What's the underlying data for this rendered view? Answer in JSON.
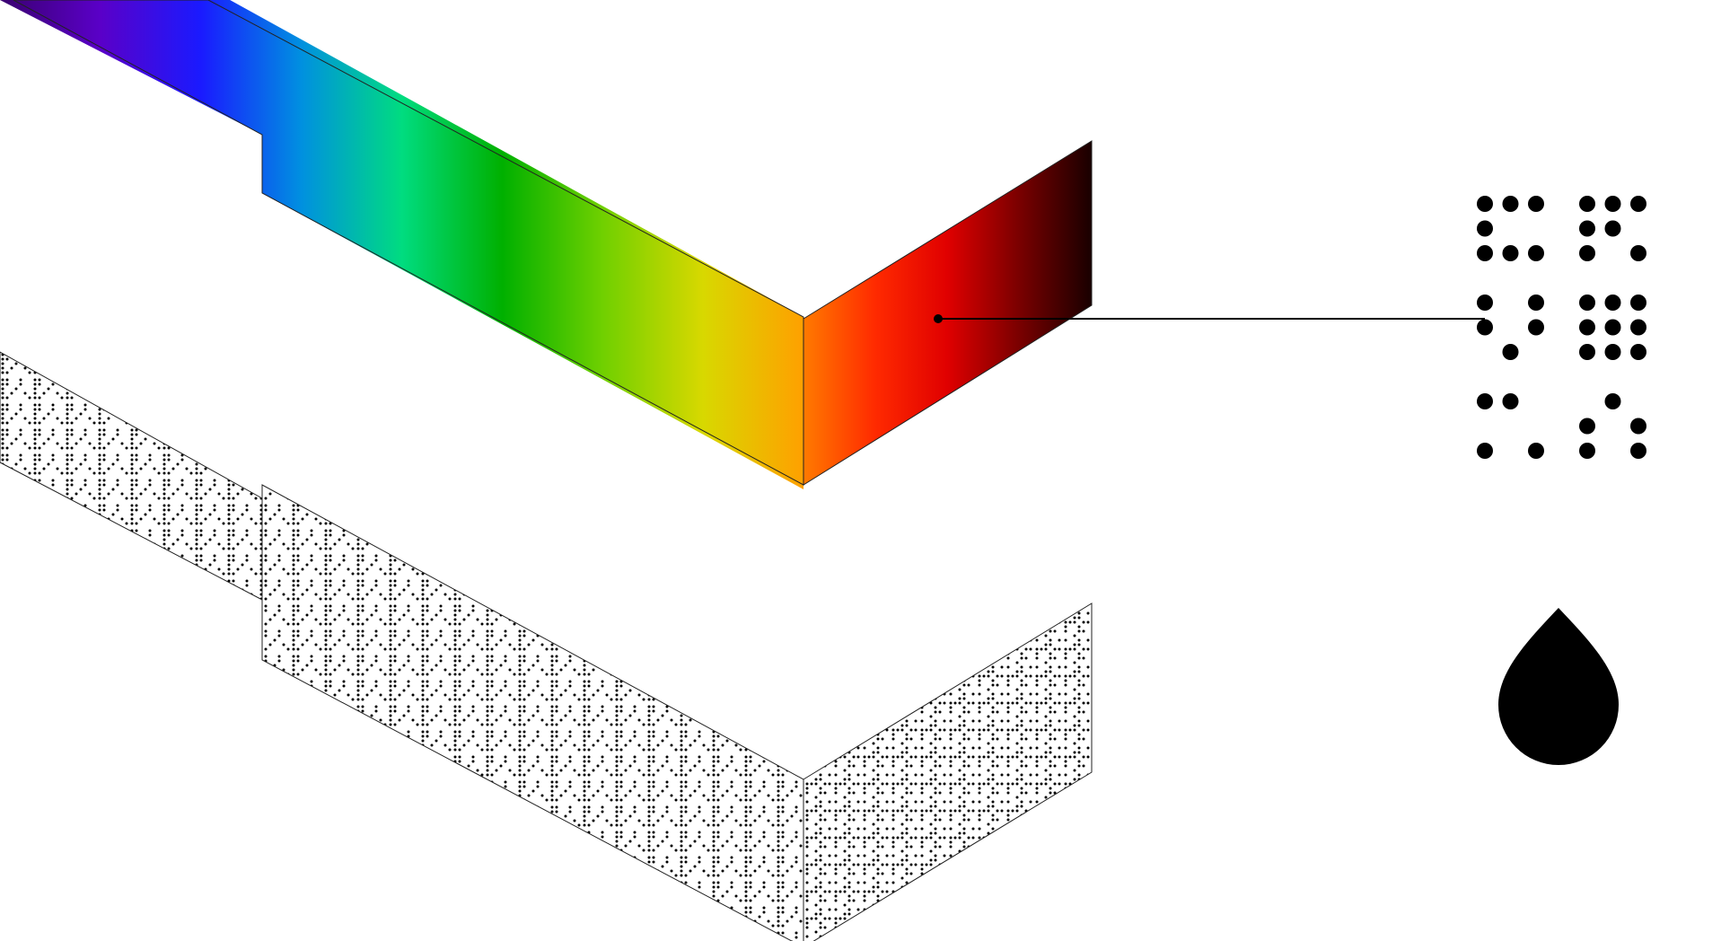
{
  "colors": {
    "background": "#ffffff",
    "outline": "#222222",
    "ink": "#000000",
    "spectrum_front": [
      "#3a0070",
      "#5a00c8",
      "#1a1aff",
      "#0090e0",
      "#00dc80",
      "#00b000",
      "#70d000",
      "#d8d800",
      "#ffa000"
    ],
    "spectrum_side": [
      "#ff7a00",
      "#ff2a00",
      "#e00000",
      "#7a0000",
      "#1a0000"
    ]
  },
  "icons": {
    "braille_cell": "braille-dot-pattern-icon",
    "drop": "drop-icon"
  },
  "braille_pattern": [
    [
      1,
      1,
      1,
      0,
      1,
      1,
      1
    ],
    [
      1,
      0,
      0,
      0,
      1,
      1,
      0
    ],
    [
      1,
      1,
      1,
      0,
      1,
      0,
      1
    ],
    [
      0,
      0,
      0,
      0,
      0,
      0,
      0
    ],
    [
      1,
      0,
      1,
      0,
      1,
      1,
      1
    ],
    [
      1,
      0,
      1,
      0,
      1,
      1,
      1
    ],
    [
      0,
      1,
      0,
      0,
      1,
      1,
      1
    ],
    [
      0,
      0,
      0,
      0,
      0,
      0,
      0
    ],
    [
      1,
      1,
      0,
      0,
      0,
      1,
      0
    ],
    [
      0,
      0,
      0,
      0,
      1,
      0,
      1
    ],
    [
      1,
      0,
      1,
      0,
      1,
      0,
      1
    ]
  ]
}
